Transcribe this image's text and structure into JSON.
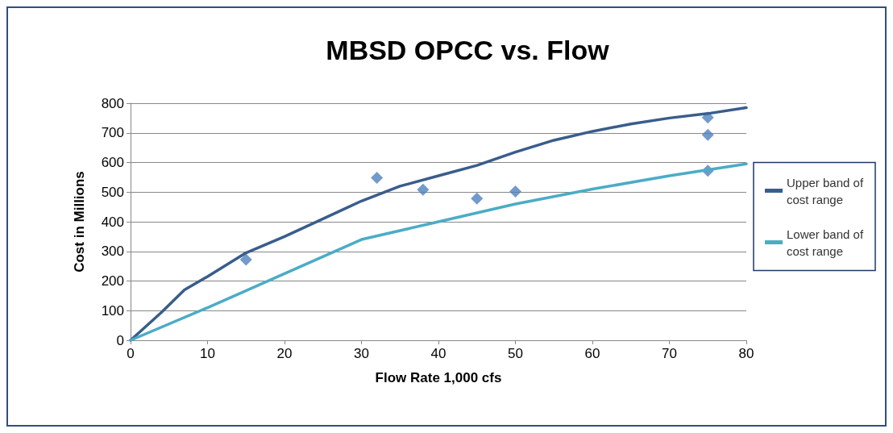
{
  "chart_data": {
    "type": "line",
    "title": "MBSD OPCC vs. Flow",
    "xlabel": "Flow Rate 1,000 cfs",
    "ylabel": "Cost in Millions",
    "series": [
      {
        "name": "Upper band of cost range",
        "color": "#395d8c",
        "marker": "none",
        "x": [
          0,
          4,
          7,
          10,
          15,
          20,
          25,
          30,
          35,
          40,
          45,
          50,
          55,
          60,
          65,
          70,
          75,
          80
        ],
        "values": [
          0,
          94,
          170,
          215,
          295,
          350,
          410,
          470,
          520,
          555,
          590,
          635,
          675,
          705,
          730,
          750,
          765,
          785
        ]
      },
      {
        "name": "Lower band of cost range",
        "color": "#4bacc6",
        "marker": "none",
        "x": [
          0,
          10,
          20,
          30,
          40,
          50,
          60,
          70,
          80
        ],
        "values": [
          0,
          110,
          225,
          340,
          400,
          460,
          510,
          555,
          595
        ]
      },
      {
        "type": "scatter",
        "color": "#4f81bd",
        "marker": "diamond",
        "x": [
          15,
          32,
          38,
          45,
          50,
          75,
          75,
          75
        ],
        "values": [
          272,
          548,
          508,
          478,
          502,
          752,
          693,
          572
        ]
      }
    ],
    "xlim": [
      0,
      80
    ],
    "xticks": [
      0,
      10,
      20,
      30,
      40,
      50,
      60,
      70,
      80
    ],
    "ylim": [
      0,
      800
    ],
    "yticks": [
      0,
      100,
      200,
      300,
      400,
      500,
      600,
      700,
      800
    ],
    "grid": "y",
    "legend": "right",
    "line_style": "solid"
  }
}
